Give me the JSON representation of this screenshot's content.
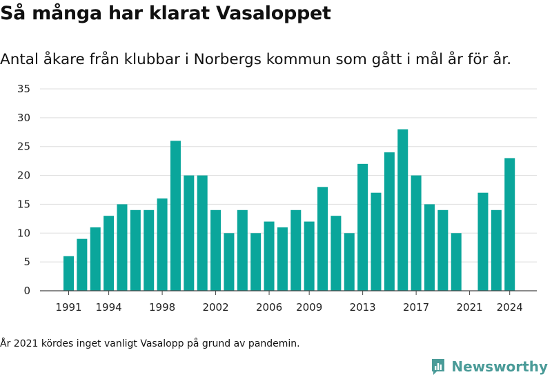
{
  "title": "Så många har klarat Vasaloppet",
  "subtitle": "Antal åkare från klubbar i Norbergs kommun som gått i mål år för år.",
  "footnote": "År 2021 kördes inget vanligt Vasalopp på grund av pandemin.",
  "brand": {
    "name": "Newsworthy",
    "icon": "newsworthy-logo-icon",
    "color": "#4a9b98"
  },
  "colors": {
    "bar": "#0aa69b",
    "grid": "#dddddd",
    "axis": "#444444"
  },
  "chart_data": {
    "type": "bar",
    "title": "Så många har klarat Vasaloppet",
    "subtitle": "Antal åkare från klubbar i Norbergs kommun som gått i mål år för år.",
    "xlabel": "",
    "ylabel": "",
    "ylim": [
      0,
      35
    ],
    "yticks": [
      0,
      5,
      10,
      15,
      20,
      25,
      30,
      35
    ],
    "xticks": [
      "1991",
      "1994",
      "1998",
      "2002",
      "2006",
      "2009",
      "2013",
      "2017",
      "2021",
      "2024"
    ],
    "grid": true,
    "legend": "none",
    "categories": [
      "1991",
      "1992",
      "1993",
      "1994",
      "1995",
      "1996",
      "1997",
      "1998",
      "1999",
      "2000",
      "2001",
      "2002",
      "2003",
      "2004",
      "2005",
      "2006",
      "2007",
      "2008",
      "2009",
      "2010",
      "2011",
      "2012",
      "2013",
      "2014",
      "2015",
      "2016",
      "2017",
      "2018",
      "2019",
      "2020",
      "2021",
      "2022",
      "2023",
      "2024"
    ],
    "values": [
      6,
      9,
      11,
      13,
      15,
      14,
      14,
      16,
      26,
      20,
      20,
      14,
      10,
      14,
      10,
      12,
      11,
      14,
      12,
      18,
      13,
      10,
      22,
      17,
      24,
      28,
      20,
      15,
      14,
      10,
      null,
      17,
      14,
      23
    ]
  }
}
